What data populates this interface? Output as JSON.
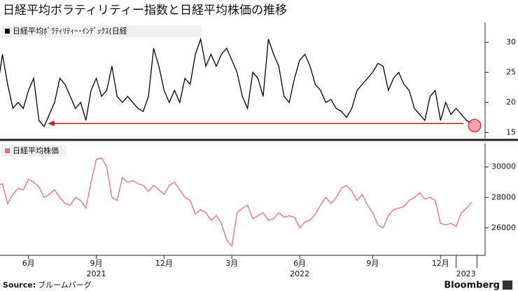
{
  "title": "日経平均ボラティリティー指数と日経平均株価の推移",
  "chart_data": [
    {
      "type": "line",
      "name": "日経平均ﾎﾞﾗﾃｨﾘﾃｨｰ･ｲﾝﾃﾞｯｸｽ(日経",
      "color": "#000000",
      "ylim": [
        14,
        33.3
      ],
      "yticks": [
        15,
        20,
        25,
        30
      ],
      "values": [
        22,
        28,
        23,
        19,
        20,
        19,
        22,
        24,
        17,
        16,
        18,
        20,
        24,
        23,
        21,
        19,
        20,
        17,
        22,
        24,
        21,
        22,
        26,
        21,
        20,
        21,
        20,
        19,
        18.5,
        21,
        29,
        26,
        22,
        20,
        22,
        20,
        24,
        23,
        28,
        30.5,
        26,
        28,
        26,
        28,
        29,
        27,
        25,
        21,
        19,
        25,
        24,
        21,
        30.5,
        28,
        26,
        21,
        20,
        24,
        27,
        28,
        26,
        23,
        22,
        20,
        20.5,
        19,
        18.5,
        17.5,
        19,
        22,
        23,
        24,
        25,
        26.5,
        26,
        22,
        24,
        25,
        23,
        22,
        19,
        18,
        17,
        21,
        22,
        17,
        20,
        18,
        19,
        18,
        17,
        16.5
      ],
      "annotation_color": "#e00000"
    },
    {
      "type": "line",
      "name": "日経平均株価",
      "color": "#f26b6b",
      "ylim": [
        24200,
        31550
      ],
      "yticks": [
        26000,
        28000,
        30000
      ],
      "values": [
        28800,
        28900,
        27600,
        28200,
        28600,
        28500,
        29200,
        29000,
        28700,
        28000,
        28200,
        28500,
        28000,
        27600,
        27500,
        28000,
        27800,
        27300,
        29000,
        30500,
        30600,
        30000,
        28000,
        27800,
        29300,
        29000,
        29100,
        28900,
        28800,
        28400,
        28800,
        28500,
        28200,
        28800,
        29000,
        28500,
        28000,
        27800,
        26900,
        27200,
        27000,
        26500,
        26800,
        26300,
        25200,
        24800,
        27000,
        27300,
        27500,
        26600,
        26800,
        27000,
        26500,
        26600,
        27000,
        26700,
        26800,
        26700,
        26000,
        26400,
        26500,
        26900,
        27500,
        28000,
        27600,
        28000,
        28600,
        28800,
        28400,
        27800,
        28200,
        27500,
        27000,
        26200,
        26000,
        26800,
        27200,
        27300,
        27400,
        27800,
        28000,
        28300,
        27900,
        28000,
        27800,
        26300,
        26200,
        26300,
        26100,
        27000,
        27300,
        27700
      ]
    }
  ],
  "categories": [
    null,
    null,
    null,
    null,
    null,
    null,
    "6月",
    null,
    null,
    null,
    null,
    null,
    null,
    null,
    null,
    null,
    null,
    null,
    null,
    "9月",
    null,
    null,
    null,
    null,
    null,
    null,
    null,
    null,
    null,
    null,
    null,
    null,
    "12月",
    null,
    null,
    null,
    null,
    null,
    null,
    null,
    null,
    null,
    null,
    null,
    null,
    "3月",
    null,
    null,
    null,
    null,
    null,
    null,
    null,
    null,
    null,
    null,
    null,
    null,
    "6月",
    null,
    null,
    null,
    null,
    null,
    null,
    null,
    null,
    null,
    null,
    null,
    null,
    null,
    "9月",
    null,
    null,
    null,
    null,
    null,
    null,
    null,
    null,
    null,
    null,
    null,
    null,
    "12月",
    null,
    null,
    null,
    null,
    null,
    null,
    null
  ],
  "year_categories": [
    null,
    null,
    null,
    null,
    null,
    null,
    null,
    null,
    null,
    null,
    null,
    null,
    null,
    null,
    null,
    null,
    null,
    null,
    null,
    "2021",
    null,
    null,
    null,
    null,
    null,
    null,
    null,
    null,
    null,
    null,
    null,
    null,
    null,
    null,
    null,
    null,
    null,
    null,
    null,
    null,
    null,
    null,
    null,
    null,
    null,
    null,
    null,
    null,
    null,
    null,
    null,
    null,
    null,
    null,
    null,
    null,
    null,
    null,
    "2022",
    null,
    null,
    null,
    null,
    null,
    null,
    null,
    null,
    null,
    null,
    null,
    null,
    null,
    null,
    null,
    null,
    null,
    null,
    null,
    null,
    null,
    null,
    null,
    null,
    null,
    null,
    null,
    null,
    null,
    "2023",
    null,
    null,
    null
  ],
  "source_label": "Source:",
  "source": "ブルームバーグ",
  "brand": "Bloomberg"
}
